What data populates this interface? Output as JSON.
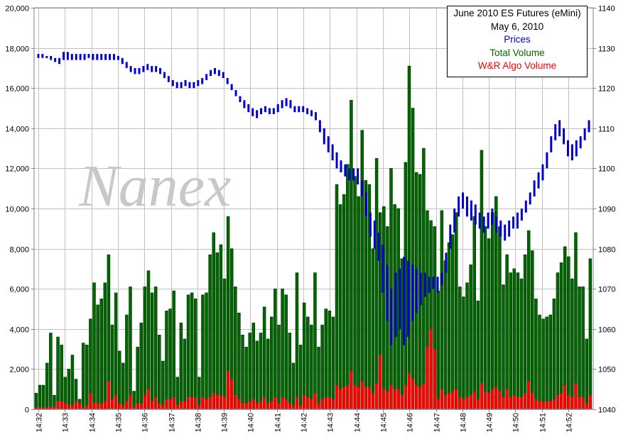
{
  "chart_data": {
    "type": "bar",
    "watermark": "Nanex",
    "title": "June 2010 ES Futures (eMini)",
    "subtitle": "May 6, 2010",
    "legend_placement": "top-right",
    "grid": true,
    "y_left": {
      "min": 0,
      "max": 20000,
      "step": 2000,
      "ticks": [
        "0",
        "2,000",
        "4,000",
        "6,000",
        "8,000",
        "10,000",
        "12,000",
        "14,000",
        "16,000",
        "18,000",
        "20,000"
      ]
    },
    "y_right": {
      "min": 1040,
      "max": 1140,
      "step": 10,
      "ticks": [
        "1040",
        "1050",
        "1060",
        "1070",
        "1080",
        "1090",
        "1100",
        "1110",
        "1120",
        "1130",
        "1140"
      ]
    },
    "x_ticks": [
      "14:32",
      "14:33",
      "14:34",
      "14:35",
      "14:36",
      "14:37",
      "14:38",
      "14:39",
      "14:40",
      "14:41",
      "14:42",
      "14:43",
      "14:44",
      "14:45",
      "14:46",
      "14:47",
      "14:48",
      "14:49",
      "14:50",
      "14:51",
      "14:52"
    ],
    "series": [
      {
        "name": "Prices",
        "type": "hilo",
        "axis": "right",
        "color": "#0000cc",
        "values": [
          [
            1127.5,
            1128.5
          ],
          [
            1127.5,
            1128.5
          ],
          [
            1127.5,
            1128
          ],
          [
            1127,
            1128
          ],
          [
            1126.5,
            1127.5
          ],
          [
            1126,
            1127.5
          ],
          [
            1127,
            1129
          ],
          [
            1127,
            1129
          ],
          [
            1127,
            1128.5
          ],
          [
            1127,
            1128.5
          ],
          [
            1127,
            1128.5
          ],
          [
            1127,
            1128.5
          ],
          [
            1127.5,
            1128.5
          ],
          [
            1127,
            1128.5
          ],
          [
            1127,
            1128.5
          ],
          [
            1127,
            1128.5
          ],
          [
            1127,
            1128.5
          ],
          [
            1127,
            1128.5
          ],
          [
            1127,
            1128.5
          ],
          [
            1127,
            1128
          ],
          [
            1126,
            1127.5
          ],
          [
            1125,
            1126.5
          ],
          [
            1124,
            1125.5
          ],
          [
            1123.5,
            1125
          ],
          [
            1123.5,
            1125
          ],
          [
            1124,
            1125.5
          ],
          [
            1124.5,
            1126
          ],
          [
            1124,
            1125.5
          ],
          [
            1124,
            1125.5
          ],
          [
            1123.5,
            1125
          ],
          [
            1122.5,
            1124
          ],
          [
            1121.5,
            1123
          ],
          [
            1120.5,
            1122
          ],
          [
            1120,
            1121.5
          ],
          [
            1120,
            1121.5
          ],
          [
            1120.5,
            1122
          ],
          [
            1120,
            1121.5
          ],
          [
            1120,
            1121.5
          ],
          [
            1120.5,
            1122
          ],
          [
            1121,
            1122.5
          ],
          [
            1122,
            1123.5
          ],
          [
            1123,
            1124.5
          ],
          [
            1123.5,
            1125
          ],
          [
            1123,
            1124.5
          ],
          [
            1122.5,
            1124
          ],
          [
            1121,
            1122.5
          ],
          [
            1119.5,
            1121
          ],
          [
            1118,
            1119.5
          ],
          [
            1116.5,
            1118
          ],
          [
            1115,
            1117
          ],
          [
            1114,
            1116
          ],
          [
            1113,
            1115
          ],
          [
            1112.5,
            1114.5
          ],
          [
            1113.5,
            1115
          ],
          [
            1114,
            1115.5
          ],
          [
            1113.5,
            1115
          ],
          [
            1113.5,
            1115
          ],
          [
            1114,
            1116
          ],
          [
            1115,
            1117
          ],
          [
            1115.5,
            1117.5
          ],
          [
            1115,
            1117
          ],
          [
            1114,
            1115.5
          ],
          [
            1114,
            1115.5
          ],
          [
            1114,
            1115.5
          ],
          [
            1113.5,
            1115
          ],
          [
            1113,
            1114.5
          ],
          [
            1112,
            1114
          ],
          [
            1109,
            1112
          ],
          [
            1106,
            1110
          ],
          [
            1104,
            1108
          ],
          [
            1102,
            1106
          ],
          [
            1100,
            1104
          ],
          [
            1099,
            1102
          ],
          [
            1098,
            1101
          ],
          [
            1097,
            1100
          ],
          [
            1097,
            1100
          ],
          [
            1096,
            1100
          ],
          [
            1093,
            1097
          ],
          [
            1088,
            1094
          ],
          [
            1083,
            1089
          ],
          [
            1080,
            1087
          ],
          [
            1077,
            1084
          ],
          [
            1069,
            1081
          ],
          [
            1062,
            1076
          ],
          [
            1056,
            1070
          ],
          [
            1058,
            1074
          ],
          [
            1060,
            1075
          ],
          [
            1056,
            1078
          ],
          [
            1058,
            1077
          ],
          [
            1062,
            1076
          ],
          [
            1064,
            1075
          ],
          [
            1066,
            1074
          ],
          [
            1068,
            1074
          ],
          [
            1069,
            1073
          ],
          [
            1070,
            1073
          ],
          [
            1069,
            1073
          ],
          [
            1071,
            1074
          ],
          [
            1074,
            1079
          ],
          [
            1080,
            1086
          ],
          [
            1084,
            1090
          ],
          [
            1088,
            1093
          ],
          [
            1090,
            1094
          ],
          [
            1088,
            1093
          ],
          [
            1087,
            1092
          ],
          [
            1086,
            1091
          ],
          [
            1085,
            1089
          ],
          [
            1084,
            1088
          ],
          [
            1085,
            1089
          ],
          [
            1086,
            1090
          ],
          [
            1084,
            1088
          ],
          [
            1083,
            1087
          ],
          [
            1082,
            1086
          ],
          [
            1083,
            1087
          ],
          [
            1085,
            1088
          ],
          [
            1085,
            1089
          ],
          [
            1087,
            1090
          ],
          [
            1089,
            1092
          ],
          [
            1091,
            1094
          ],
          [
            1093,
            1097
          ],
          [
            1095,
            1099
          ],
          [
            1097,
            1101
          ],
          [
            1100,
            1104
          ],
          [
            1104,
            1108
          ],
          [
            1107,
            1111
          ],
          [
            1108,
            1112
          ],
          [
            1106,
            1110
          ],
          [
            1103,
            1107
          ],
          [
            1102,
            1106
          ],
          [
            1103,
            1107
          ],
          [
            1105,
            1108
          ],
          [
            1107,
            1110
          ],
          [
            1109,
            1112
          ]
        ]
      },
      {
        "name": "Total Volume",
        "type": "bar",
        "axis": "left",
        "color": "#006600",
        "values": [
          800,
          1200,
          1200,
          2300,
          3800,
          700,
          3600,
          3200,
          1600,
          2000,
          2700,
          1500,
          500,
          3300,
          3200,
          4500,
          6300,
          5200,
          5500,
          6300,
          7700,
          4200,
          5800,
          2900,
          2300,
          4700,
          6100,
          900,
          3100,
          4300,
          6100,
          6900,
          5800,
          6100,
          3700,
          2400,
          4900,
          5000,
          5900,
          1600,
          4300,
          3500,
          5700,
          5800,
          5500,
          1600,
          5700,
          5800,
          7700,
          8800,
          7800,
          8200,
          6500,
          9600,
          8000,
          6100,
          4800,
          3700,
          3100,
          3800,
          4300,
          3400,
          3800,
          5100,
          3500,
          4600,
          6000,
          4200,
          6000,
          5700,
          3800,
          2300,
          6800,
          3200,
          5300,
          4600,
          4200,
          6800,
          3100,
          4200,
          5000,
          4900,
          4600,
          11200,
          10200,
          10700,
          12200,
          15400,
          11600,
          10600,
          13900,
          11400,
          11200,
          8000,
          12500,
          9800,
          10100,
          9100,
          12000,
          10200,
          10000,
          7500,
          12300,
          17100,
          15000,
          11800,
          11700,
          13000,
          9900,
          9400,
          9100,
          5900,
          9900,
          7400,
          8300,
          8700,
          9800,
          6100,
          5600,
          6300,
          7200,
          9600,
          5400,
          12900,
          9100,
          8500,
          9800,
          10600,
          9100,
          6200,
          7700,
          6800,
          7000,
          6800,
          6500,
          7700,
          8900,
          7900,
          5500,
          4700,
          4500,
          4600,
          4700,
          5500,
          6800,
          7300,
          8100,
          7600,
          6500,
          8800,
          6100,
          6100,
          3500,
          7500
        ]
      },
      {
        "name": "W&R Algo Volume",
        "type": "bar",
        "axis": "left",
        "color": "#ff0000",
        "values": [
          100,
          100,
          100,
          100,
          150,
          100,
          400,
          400,
          300,
          200,
          200,
          400,
          300,
          100,
          200,
          800,
          300,
          300,
          300,
          400,
          1400,
          500,
          700,
          300,
          200,
          400,
          700,
          100,
          300,
          300,
          700,
          1000,
          400,
          600,
          300,
          200,
          500,
          500,
          600,
          200,
          400,
          400,
          600,
          600,
          600,
          200,
          600,
          500,
          600,
          800,
          700,
          700,
          600,
          1900,
          1500,
          700,
          500,
          300,
          300,
          400,
          500,
          300,
          400,
          600,
          300,
          400,
          600,
          300,
          600,
          500,
          300,
          200,
          600,
          200,
          700,
          600,
          500,
          800,
          300,
          500,
          600,
          600,
          500,
          1200,
          1000,
          1100,
          1200,
          1900,
          1200,
          1100,
          1400,
          1100,
          1100,
          800,
          1300,
          2700,
          1000,
          900,
          1200,
          1000,
          1000,
          700,
          1200,
          1800,
          1500,
          1200,
          1100,
          1300,
          3100,
          4000,
          3000,
          500,
          1000,
          700,
          800,
          900,
          1000,
          600,
          500,
          600,
          700,
          900,
          500,
          1300,
          900,
          800,
          1000,
          1100,
          900,
          600,
          1000,
          600,
          700,
          600,
          600,
          800,
          1400,
          800,
          500,
          400,
          400,
          400,
          400,
          500,
          700,
          800,
          1200,
          700,
          600,
          1300,
          600,
          600,
          300,
          700
        ]
      }
    ]
  }
}
